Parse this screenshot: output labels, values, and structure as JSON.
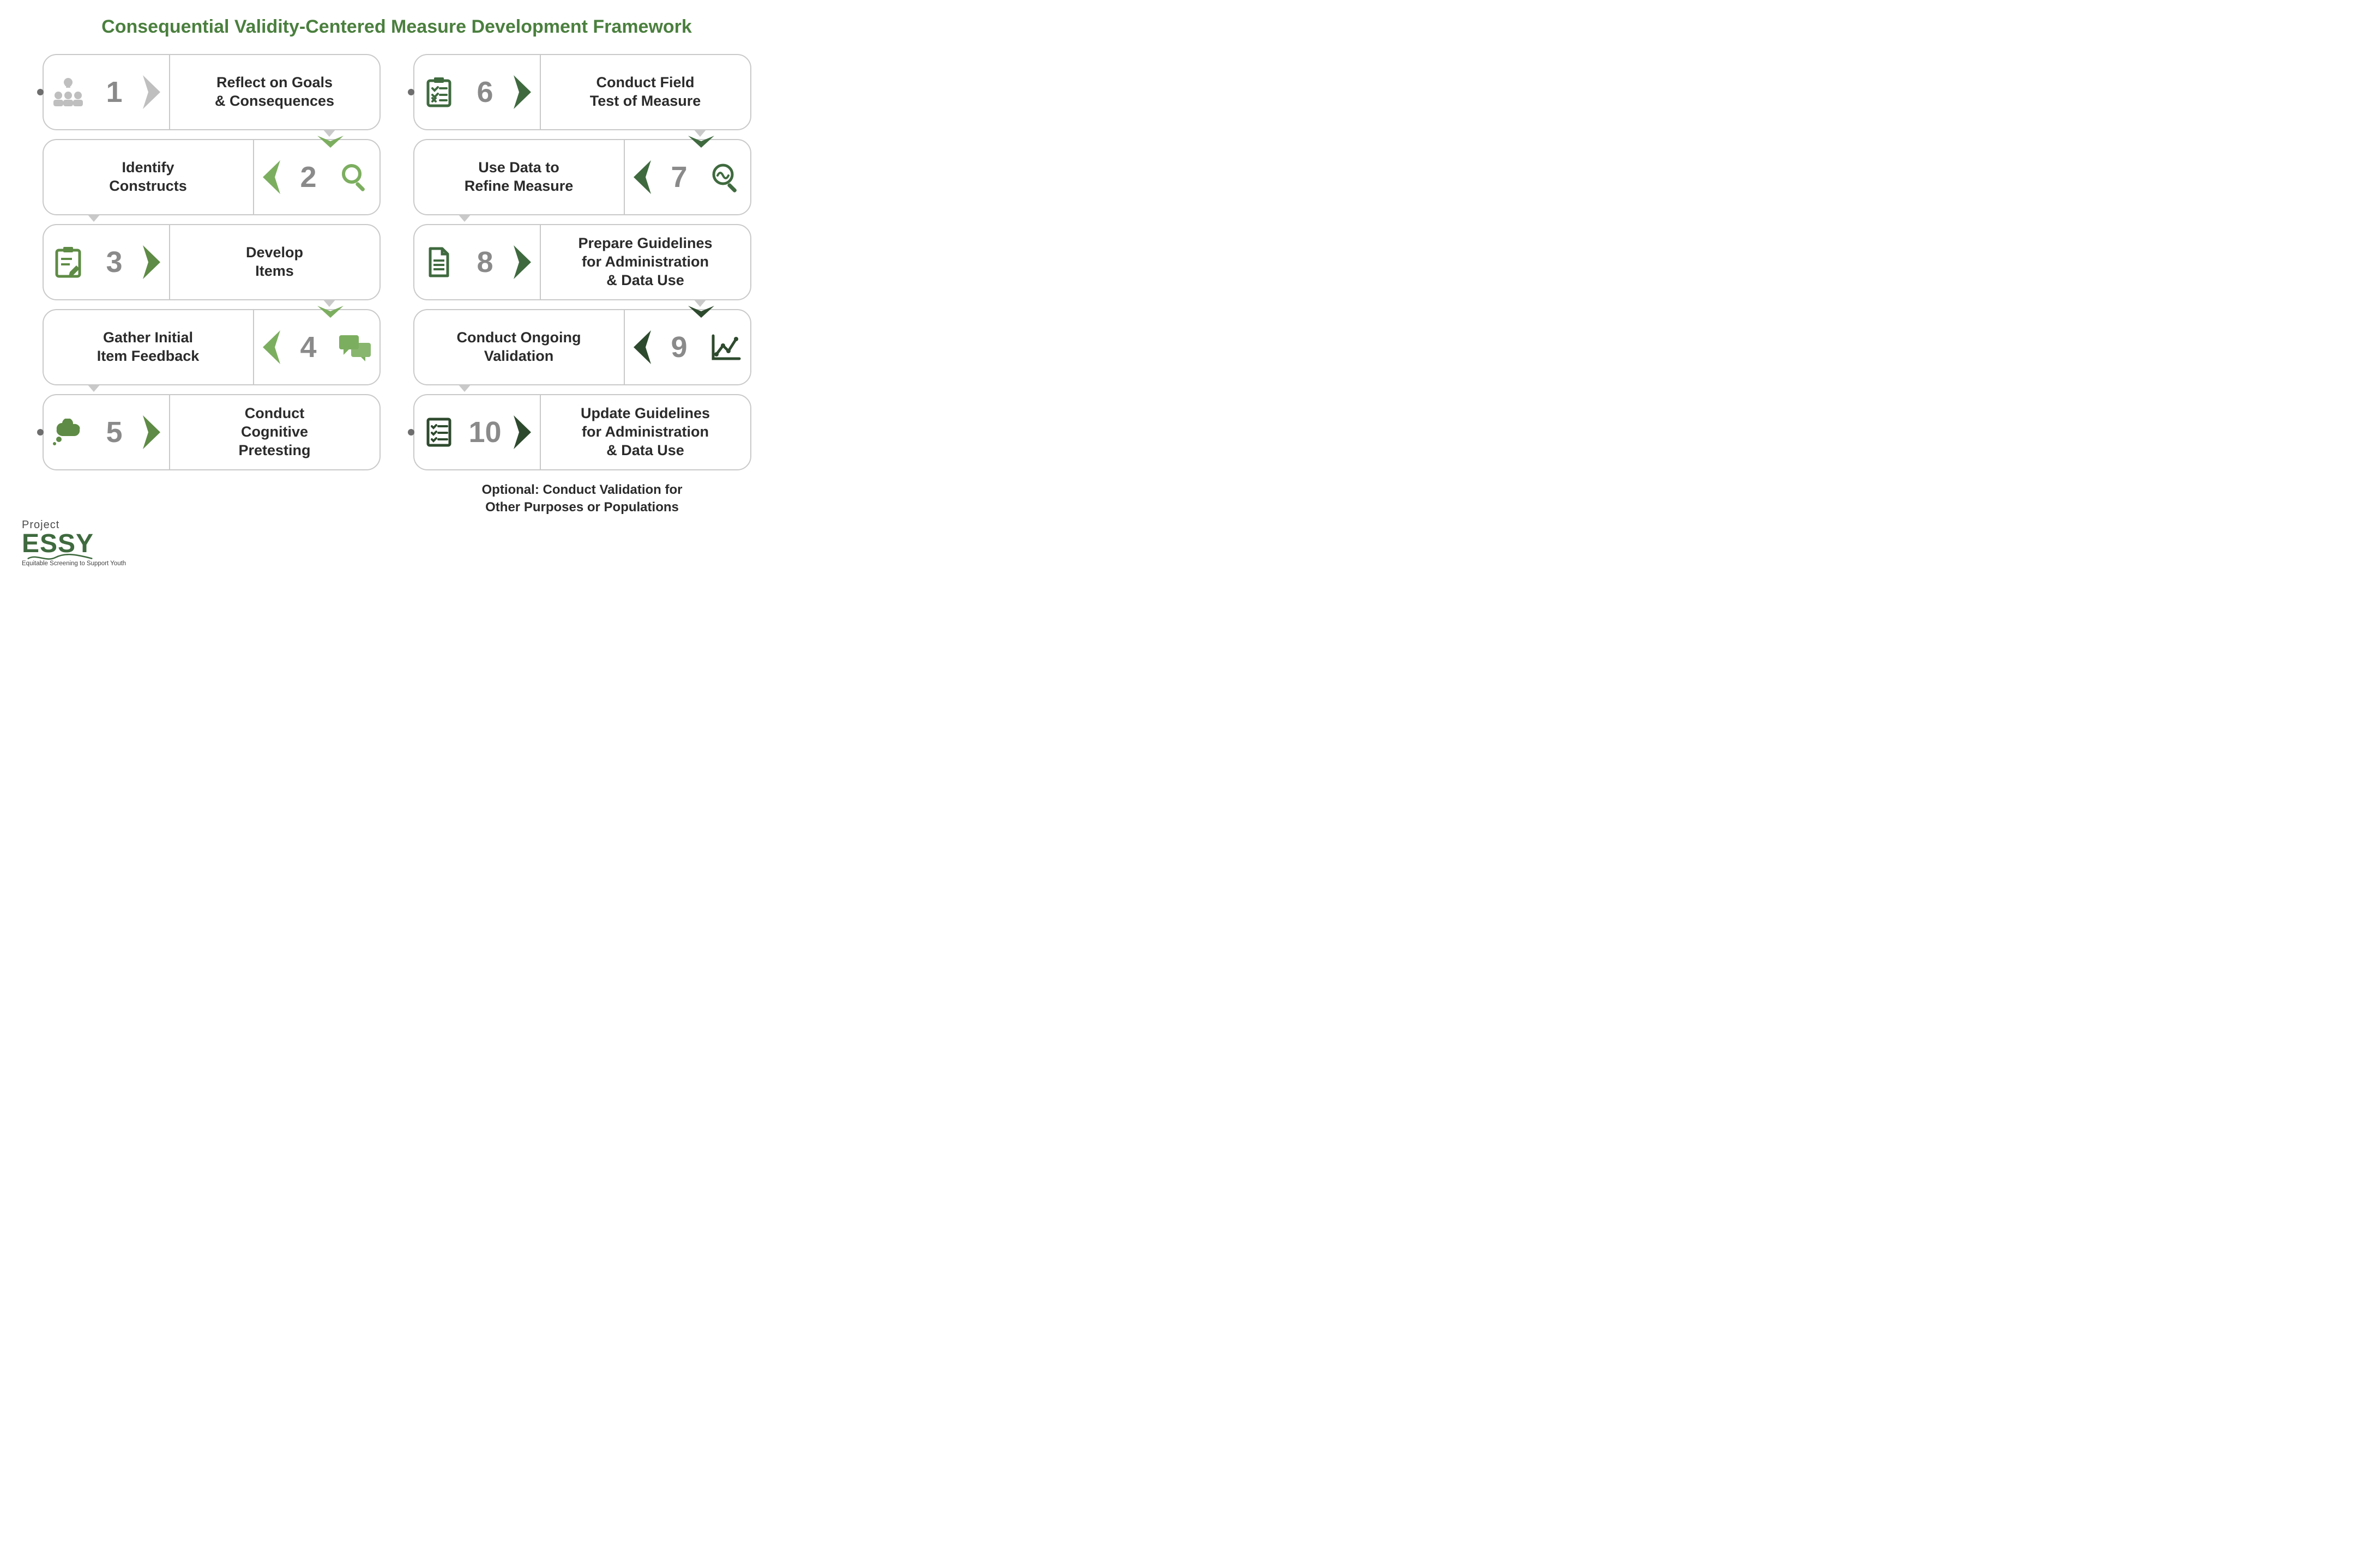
{
  "title": {
    "text": "Consequential Validity-Centered Measure Development Framework",
    "color": "#4a7f3e",
    "fontsize": 34
  },
  "palette": {
    "border": "#c9c9c9",
    "text": "#2b2b2b",
    "num": "#8a8a8a",
    "grey_light": "#bfbfbf",
    "green_light": "#7cae5f",
    "green_mid": "#5e8b45",
    "green_dark": "#3f6a3f",
    "green_vdark": "#2e4a2e"
  },
  "typography": {
    "number_fontsize": 54,
    "label_fontsize": 27,
    "optional_fontsize": 24
  },
  "columns": [
    {
      "steps": [
        {
          "n": "1",
          "label": "Reflect on Goals\n& Consequences",
          "side": "left",
          "icon": "group-idea",
          "icon_color": "#bfbfbf",
          "chev_color": "#bfbfbf",
          "dot": true,
          "down_color": "#7cae5f"
        },
        {
          "n": "2",
          "label": "Identify\nConstructs",
          "side": "right",
          "icon": "magnifier",
          "icon_color": "#7cae5f",
          "chev_color": "#7cae5f",
          "dot": false,
          "down_color": null
        },
        {
          "n": "3",
          "label": "Develop\nItems",
          "side": "left",
          "icon": "clipboard-pen",
          "icon_color": "#5e8b45",
          "chev_color": "#5e8b45",
          "dot": false,
          "down_color": "#7cae5f"
        },
        {
          "n": "4",
          "label": "Gather Initial\nItem Feedback",
          "side": "right",
          "icon": "chat",
          "icon_color": "#7cae5f",
          "chev_color": "#7cae5f",
          "dot": false,
          "down_color": null
        },
        {
          "n": "5",
          "label": "Conduct\nCognitive\nPretesting",
          "side": "left",
          "icon": "thought",
          "icon_color": "#5e8b45",
          "chev_color": "#5e8b45",
          "dot": true,
          "down_color": null,
          "no_tail": true
        }
      ]
    },
    {
      "steps": [
        {
          "n": "6",
          "label": "Conduct Field\nTest of Measure",
          "side": "left",
          "icon": "clipboard-check",
          "icon_color": "#3f6a3f",
          "chev_color": "#3f6a3f",
          "dot": true,
          "down_color": "#3f6a3f"
        },
        {
          "n": "7",
          "label": "Use Data to\nRefine Measure",
          "side": "right",
          "icon": "magnifier-data",
          "icon_color": "#3f6a3f",
          "chev_color": "#3f6a3f",
          "dot": false,
          "down_color": null
        },
        {
          "n": "8",
          "label": "Prepare Guidelines\nfor Administration\n& Data Use",
          "side": "left",
          "icon": "document",
          "icon_color": "#3f6a3f",
          "chev_color": "#3f6a3f",
          "dot": false,
          "down_color": "#2e4a2e"
        },
        {
          "n": "9",
          "label": "Conduct Ongoing\nValidation",
          "side": "right",
          "icon": "line-chart",
          "icon_color": "#2e4a2e",
          "chev_color": "#2e4a2e",
          "dot": false,
          "down_color": null
        },
        {
          "n": "10",
          "label": "Update Guidelines\nfor Administration\n& Data Use",
          "side": "left",
          "icon": "checklist",
          "icon_color": "#2e4a2e",
          "chev_color": "#2e4a2e",
          "dot": true,
          "down_color": null,
          "no_tail": true
        }
      ],
      "optional": "Optional: Conduct Validation for\nOther Purposes or Populations"
    }
  ],
  "brand": {
    "project": "Project",
    "name": "ESSY",
    "tagline": "Equitable Screening to Support Youth",
    "color": "#3f6a3f"
  }
}
